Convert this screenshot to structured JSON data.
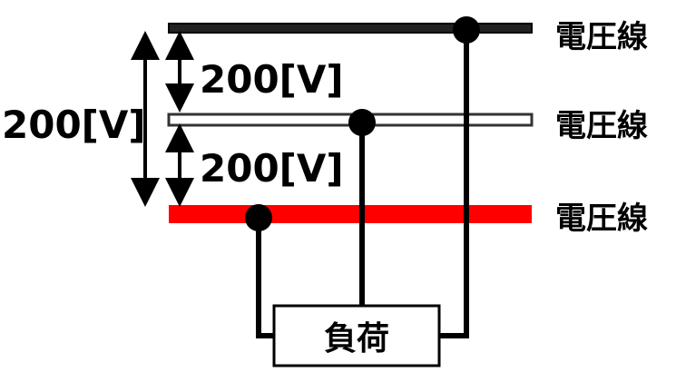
{
  "lines": {
    "top": {
      "label": "電圧線",
      "color": "#222222"
    },
    "middle": {
      "label": "電圧線",
      "color": "#ffffff"
    },
    "bottom": {
      "label": "電圧線",
      "color": "#ff0000"
    }
  },
  "voltages": {
    "total": "200[V]",
    "upper": "200[V]",
    "lower": "200[V]"
  },
  "load": {
    "label": "負荷"
  }
}
